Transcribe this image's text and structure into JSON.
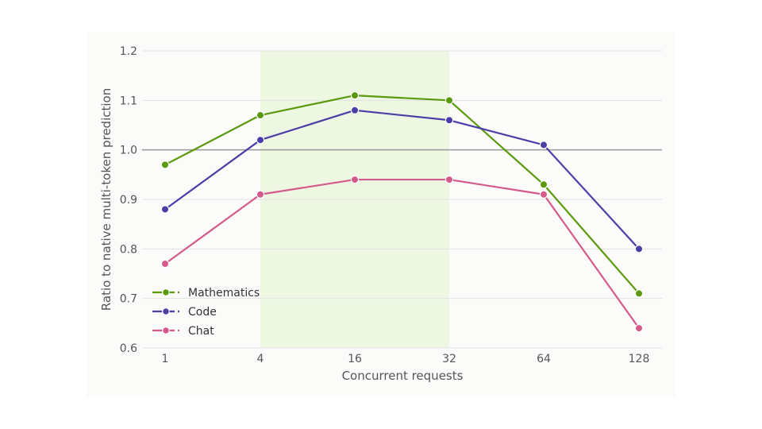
{
  "chart_data": {
    "type": "line",
    "xlabel": "Concurrent requests",
    "ylabel": "Ratio to native multi-token prediction",
    "x": [
      "1",
      "4",
      "16",
      "32",
      "64",
      "128"
    ],
    "ylim": [
      0.6,
      1.2
    ],
    "yticks": [
      "0.6",
      "0.7",
      "0.8",
      "0.9",
      "1.0",
      "1.1",
      "1.2"
    ],
    "reference_line": 1.0,
    "highlight_band": [
      "4",
      "32"
    ],
    "grid": true,
    "legend_position": "lower-left",
    "series": [
      {
        "name": "Mathematics",
        "color": "#5a9a0c",
        "values": [
          0.97,
          1.07,
          1.11,
          1.1,
          0.93,
          0.71
        ]
      },
      {
        "name": "Code",
        "color": "#4a3fa6",
        "values": [
          0.88,
          1.02,
          1.08,
          1.06,
          1.01,
          0.8
        ]
      },
      {
        "name": "Chat",
        "color": "#d45a8c",
        "values": [
          0.77,
          0.91,
          0.94,
          0.94,
          0.91,
          0.64
        ]
      }
    ]
  },
  "colors": {
    "band": "#eef7e2",
    "grid": "#e2e2e2",
    "reference_line": "#999999",
    "frame": "#fbfbfa"
  }
}
